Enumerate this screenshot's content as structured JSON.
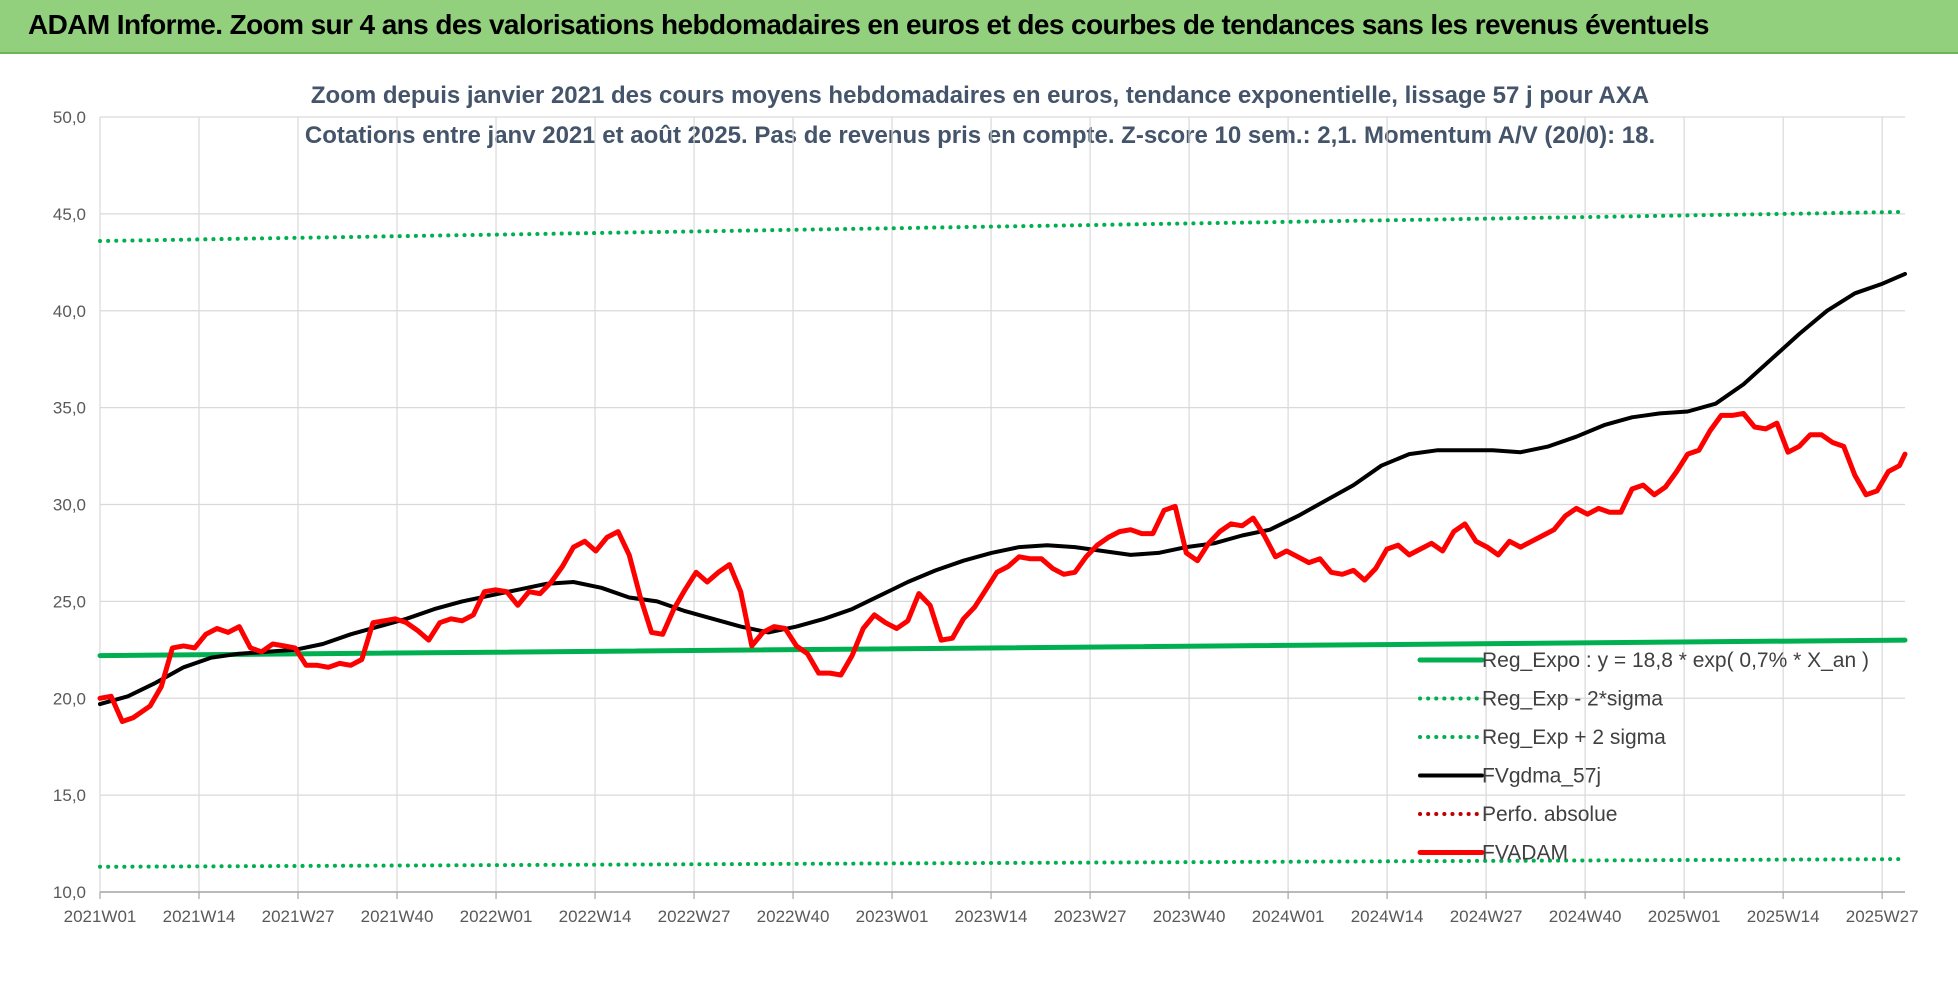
{
  "banner": {
    "title": "ADAM Informe. Zoom sur 4 ans des valorisations hebdomadaires en euros et des courbes de tendances sans les revenus éventuels"
  },
  "colors": {
    "banner_bg": "#92d07e",
    "reg_expo": "#00b050",
    "fvgdma": "#000000",
    "fvadam": "#ff0000",
    "perfo": "#c00000",
    "grid": "#d9d9d9"
  },
  "chart_data": {
    "type": "line",
    "title": "Zoom depuis janvier 2021 des cours moyens hebdomadaires en euros, tendance exponentielle, lissage 57 j pour AXA",
    "subtitle": "Cotations entre janv 2021 et août 2025.  Pas de revenus pris en compte. Z-score 10 sem.: 2,1. Momentum A/V (20/0): 18.",
    "ylim": [
      10,
      50
    ],
    "y_ticks": [
      "10,0",
      "15,0",
      "20,0",
      "25,0",
      "30,0",
      "35,0",
      "40,0",
      "45,0",
      "50,0"
    ],
    "x_ticks": [
      "2021W01",
      "2021W14",
      "2021W27",
      "2021W40",
      "2022W01",
      "2022W14",
      "2022W27",
      "2022W40",
      "2023W01",
      "2023W14",
      "2023W27",
      "2023W40",
      "2024W01",
      "2024W14",
      "2024W27",
      "2024W40",
      "2025W01",
      "2025W14",
      "2025W27"
    ],
    "n_weeks": 238,
    "legend_position": "bottom-right",
    "grid": true,
    "series": [
      {
        "name": "Reg_Expo : y = 18,8 * exp( 0,7% *  X_an )",
        "style": "solid-thick",
        "color": "#00b050",
        "points": [
          [
            0,
            22.2
          ],
          [
            237,
            23.0
          ]
        ]
      },
      {
        "name": "Reg_Exp - 2*sigma",
        "style": "dotted",
        "color": "#00b050",
        "points": [
          [
            0,
            11.3
          ],
          [
            237,
            11.7
          ]
        ]
      },
      {
        "name": "Reg_Exp + 2 sigma",
        "style": "dotted",
        "color": "#00b050",
        "points": [
          [
            0,
            43.6
          ],
          [
            237,
            45.1
          ]
        ]
      },
      {
        "name": "FVgdma_57j",
        "style": "solid",
        "color": "#000000",
        "points": [
          [
            0,
            19.7
          ],
          [
            5,
            20.1
          ],
          [
            10,
            20.8
          ],
          [
            15,
            21.6
          ],
          [
            20,
            22.1
          ],
          [
            25,
            22.3
          ],
          [
            30,
            22.4
          ],
          [
            35,
            22.5
          ],
          [
            40,
            22.8
          ],
          [
            45,
            23.3
          ],
          [
            50,
            23.7
          ],
          [
            55,
            24.1
          ],
          [
            60,
            24.6
          ],
          [
            65,
            25.0
          ],
          [
            70,
            25.3
          ],
          [
            75,
            25.6
          ],
          [
            80,
            25.9
          ],
          [
            85,
            26.0
          ],
          [
            90,
            25.7
          ],
          [
            95,
            25.2
          ],
          [
            100,
            25.0
          ],
          [
            105,
            24.5
          ],
          [
            110,
            24.1
          ],
          [
            115,
            23.7
          ],
          [
            120,
            23.4
          ],
          [
            125,
            23.7
          ],
          [
            130,
            24.1
          ],
          [
            135,
            24.6
          ],
          [
            140,
            25.3
          ],
          [
            145,
            26.0
          ],
          [
            150,
            26.6
          ],
          [
            155,
            27.1
          ],
          [
            160,
            27.5
          ],
          [
            165,
            27.8
          ],
          [
            170,
            27.9
          ],
          [
            175,
            27.8
          ],
          [
            180,
            27.6
          ],
          [
            185,
            27.4
          ],
          [
            190,
            27.5
          ],
          [
            195,
            27.8
          ],
          [
            200,
            28.0
          ],
          [
            205,
            28.4
          ],
          [
            210,
            28.7
          ],
          [
            215,
            29.4
          ],
          [
            220,
            30.2
          ],
          [
            225,
            31.0
          ],
          [
            230,
            32.0
          ],
          [
            235,
            32.6
          ],
          [
            240,
            32.8
          ],
          [
            245,
            32.8
          ],
          [
            250,
            32.8
          ],
          [
            255,
            32.7
          ],
          [
            260,
            33.0
          ],
          [
            265,
            33.5
          ],
          [
            270,
            34.1
          ],
          [
            275,
            34.5
          ],
          [
            280,
            34.7
          ],
          [
            285,
            34.8
          ],
          [
            290,
            35.2
          ],
          [
            295,
            36.2
          ],
          [
            300,
            37.5
          ],
          [
            305,
            38.8
          ],
          [
            310,
            40.0
          ],
          [
            315,
            40.9
          ],
          [
            320,
            41.4
          ],
          [
            324,
            41.9
          ]
        ]
      },
      {
        "name": "Perfo. absolue",
        "style": "dotted",
        "color": "#c00000",
        "points": []
      },
      {
        "name": "FVADAM",
        "style": "solid-thick",
        "color": "#ff0000",
        "points": [
          [
            0,
            20.0
          ],
          [
            2,
            20.1
          ],
          [
            4,
            18.8
          ],
          [
            6,
            19.0
          ],
          [
            9,
            19.6
          ],
          [
            11,
            20.6
          ],
          [
            13,
            22.6
          ],
          [
            15,
            22.7
          ],
          [
            17,
            22.6
          ],
          [
            19,
            23.3
          ],
          [
            21,
            23.6
          ],
          [
            23,
            23.4
          ],
          [
            25,
            23.7
          ],
          [
            27,
            22.6
          ],
          [
            29,
            22.4
          ],
          [
            31,
            22.8
          ],
          [
            33,
            22.7
          ],
          [
            35,
            22.6
          ],
          [
            37,
            21.7
          ],
          [
            39,
            21.7
          ],
          [
            41,
            21.6
          ],
          [
            43,
            21.8
          ],
          [
            45,
            21.7
          ],
          [
            47,
            22.0
          ],
          [
            49,
            23.9
          ],
          [
            51,
            24.0
          ],
          [
            53,
            24.1
          ],
          [
            55,
            23.9
          ],
          [
            57,
            23.5
          ],
          [
            59,
            23.0
          ],
          [
            61,
            23.9
          ],
          [
            63,
            24.1
          ],
          [
            65,
            24.0
          ],
          [
            67,
            24.3
          ],
          [
            69,
            25.5
          ],
          [
            71,
            25.6
          ],
          [
            73,
            25.5
          ],
          [
            75,
            24.8
          ],
          [
            77,
            25.5
          ],
          [
            79,
            25.4
          ],
          [
            81,
            26.0
          ],
          [
            83,
            26.8
          ],
          [
            85,
            27.8
          ],
          [
            87,
            28.1
          ],
          [
            89,
            27.6
          ],
          [
            91,
            28.3
          ],
          [
            93,
            28.6
          ],
          [
            95,
            27.4
          ],
          [
            97,
            25.2
          ],
          [
            99,
            23.4
          ],
          [
            101,
            23.3
          ],
          [
            103,
            24.6
          ],
          [
            105,
            25.6
          ],
          [
            107,
            26.5
          ],
          [
            109,
            26.0
          ],
          [
            111,
            26.5
          ],
          [
            113,
            26.9
          ],
          [
            115,
            25.5
          ],
          [
            117,
            22.7
          ],
          [
            119,
            23.4
          ],
          [
            121,
            23.7
          ],
          [
            123,
            23.6
          ],
          [
            125,
            22.7
          ],
          [
            127,
            22.3
          ],
          [
            129,
            21.3
          ],
          [
            131,
            21.3
          ],
          [
            133,
            21.2
          ],
          [
            135,
            22.2
          ],
          [
            137,
            23.6
          ],
          [
            139,
            24.3
          ],
          [
            141,
            23.9
          ],
          [
            143,
            23.6
          ],
          [
            145,
            24.0
          ],
          [
            147,
            25.4
          ],
          [
            149,
            24.8
          ],
          [
            151,
            23.0
          ],
          [
            153,
            23.1
          ],
          [
            155,
            24.1
          ],
          [
            157,
            24.7
          ],
          [
            159,
            25.6
          ],
          [
            161,
            26.5
          ],
          [
            163,
            26.8
          ],
          [
            165,
            27.3
          ],
          [
            167,
            27.2
          ],
          [
            169,
            27.2
          ],
          [
            171,
            26.7
          ],
          [
            173,
            26.4
          ],
          [
            175,
            26.5
          ],
          [
            177,
            27.3
          ],
          [
            179,
            27.9
          ],
          [
            181,
            28.3
          ],
          [
            183,
            28.6
          ],
          [
            185,
            28.7
          ],
          [
            187,
            28.5
          ],
          [
            189,
            28.5
          ],
          [
            191,
            29.7
          ],
          [
            193,
            29.9
          ],
          [
            195,
            27.5
          ],
          [
            197,
            27.1
          ],
          [
            199,
            28.0
          ],
          [
            201,
            28.6
          ],
          [
            203,
            29.0
          ],
          [
            205,
            28.9
          ],
          [
            207,
            29.3
          ],
          [
            209,
            28.4
          ],
          [
            211,
            27.3
          ],
          [
            213,
            27.6
          ],
          [
            215,
            27.3
          ],
          [
            217,
            27.0
          ],
          [
            219,
            27.2
          ],
          [
            221,
            26.5
          ],
          [
            223,
            26.4
          ],
          [
            225,
            26.6
          ],
          [
            227,
            26.1
          ],
          [
            229,
            26.7
          ],
          [
            231,
            27.7
          ],
          [
            233,
            27.9
          ],
          [
            235,
            27.4
          ],
          [
            237,
            27.7
          ],
          [
            239,
            28.0
          ],
          [
            241,
            27.6
          ],
          [
            243,
            28.6
          ],
          [
            245,
            29.0
          ],
          [
            247,
            28.1
          ],
          [
            249,
            27.8
          ],
          [
            251,
            27.4
          ],
          [
            253,
            28.1
          ],
          [
            255,
            27.8
          ],
          [
            257,
            28.1
          ],
          [
            259,
            28.4
          ],
          [
            261,
            28.7
          ],
          [
            263,
            29.4
          ],
          [
            265,
            29.8
          ],
          [
            267,
            29.5
          ],
          [
            269,
            29.8
          ],
          [
            271,
            29.6
          ],
          [
            273,
            29.6
          ],
          [
            275,
            30.8
          ],
          [
            277,
            31.0
          ],
          [
            279,
            30.5
          ],
          [
            281,
            30.9
          ],
          [
            283,
            31.7
          ],
          [
            285,
            32.6
          ],
          [
            287,
            32.8
          ],
          [
            289,
            33.8
          ],
          [
            291,
            34.6
          ],
          [
            293,
            34.6
          ],
          [
            295,
            34.7
          ],
          [
            297,
            34.0
          ],
          [
            299,
            33.9
          ],
          [
            301,
            34.2
          ],
          [
            303,
            32.7
          ],
          [
            305,
            33.0
          ],
          [
            307,
            33.6
          ],
          [
            309,
            33.6
          ],
          [
            311,
            33.2
          ],
          [
            313,
            33.0
          ],
          [
            315,
            31.5
          ],
          [
            317,
            30.5
          ],
          [
            319,
            30.7
          ],
          [
            321,
            31.7
          ],
          [
            323,
            32.0
          ],
          [
            324,
            32.6
          ]
        ]
      }
    ]
  },
  "legend": [
    {
      "label": "Reg_Expo : y = 18,8 * exp( 0,7% *  X_an )"
    },
    {
      "label": "Reg_Exp - 2*sigma"
    },
    {
      "label": "Reg_Exp + 2 sigma"
    },
    {
      "label": "FVgdma_57j"
    },
    {
      "label": "Perfo. absolue"
    },
    {
      "label": "FVADAM"
    }
  ]
}
